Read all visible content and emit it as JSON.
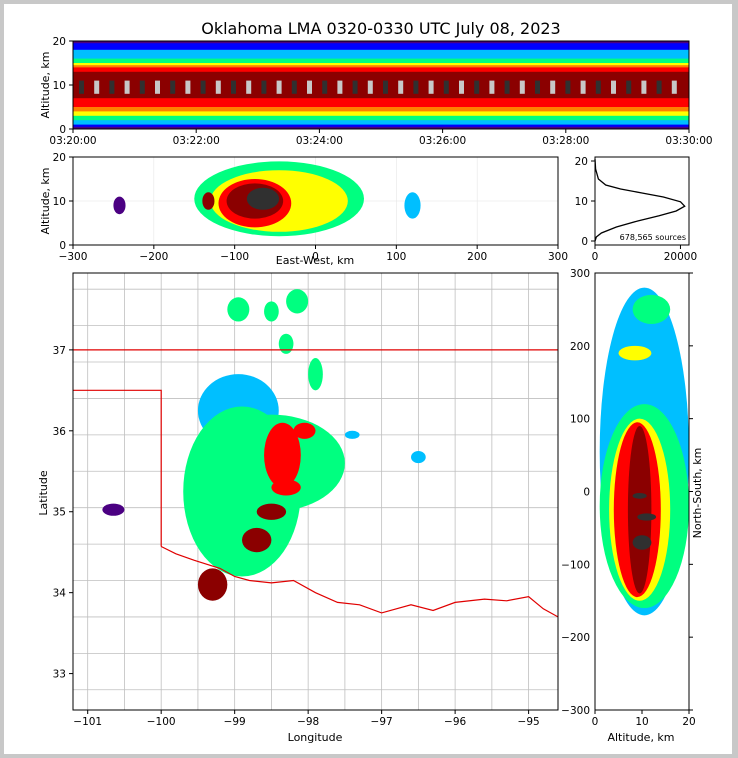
{
  "title": "Oklahoma LMA 0320-0330 UTC July 08, 2023",
  "colors": {
    "density_scale": [
      "#4b0082",
      "#0000ff",
      "#00bfff",
      "#00ff80",
      "#ffff00",
      "#ff8000",
      "#ff0000",
      "#8b0000",
      "#303030",
      "#c8c8c8"
    ],
    "state_border": "#e00000",
    "county_lines": "#bfbfbf",
    "profile_line": "#000000"
  },
  "chart_data": [
    {
      "id": "time-height",
      "type": "heatmap",
      "xlabel": "",
      "ylabel": "Altitude, km",
      "xticks": [
        "03:20:00",
        "03:22:00",
        "03:24:00",
        "03:26:00",
        "03:28:00",
        "03:30:00"
      ],
      "xlim": [
        "03:20:00",
        "03:30:00"
      ],
      "yticks": [
        0,
        10,
        20
      ],
      "ylim": [
        0,
        20
      ],
      "core_altitude_km": [
        7,
        13
      ]
    },
    {
      "id": "east-west-altitude",
      "type": "heatmap",
      "xlabel": "East-West, km",
      "ylabel": "Altitude, km",
      "xticks": [
        -300,
        -200,
        -100,
        0,
        100,
        200,
        300
      ],
      "xlim": [
        -300,
        300
      ],
      "yticks": [
        0,
        10,
        20
      ],
      "ylim": [
        0,
        20
      ],
      "cells": [
        {
          "x": [
            -150,
            60
          ],
          "y": [
            2,
            19
          ],
          "level": 3
        },
        {
          "x": [
            -130,
            40
          ],
          "y": [
            3,
            17
          ],
          "level": 4
        },
        {
          "x": [
            -120,
            -30
          ],
          "y": [
            4,
            15
          ],
          "level": 6
        },
        {
          "x": [
            -110,
            -40
          ],
          "y": [
            6,
            14
          ],
          "level": 7
        },
        {
          "x": [
            -85,
            -45
          ],
          "y": [
            8,
            13
          ],
          "level": 8
        },
        {
          "x": [
            -140,
            -125
          ],
          "y": [
            8,
            12
          ],
          "level": 7
        },
        {
          "x": [
            110,
            130
          ],
          "y": [
            6,
            12
          ],
          "level": 2
        },
        {
          "x": [
            -250,
            -235
          ],
          "y": [
            7,
            11
          ],
          "level": 0
        }
      ]
    },
    {
      "id": "altitude-histogram",
      "type": "line",
      "xticks": [
        0,
        20000
      ],
      "xlim": [
        0,
        22000
      ],
      "yticks": [
        0,
        10,
        20
      ],
      "ylim": [
        -1,
        21
      ],
      "annotation": "678,565 sources",
      "x": [
        0,
        300,
        1500,
        5000,
        10000,
        15000,
        19000,
        21000,
        20000,
        16000,
        11000,
        6000,
        2500,
        800,
        150,
        0
      ],
      "y": [
        0,
        1,
        2,
        3.5,
        5,
        6.3,
        7.5,
        8.7,
        9.8,
        11,
        12,
        13,
        14,
        15.5,
        18,
        20.5
      ]
    },
    {
      "id": "plan-view",
      "type": "heatmap",
      "xlabel": "Longitude",
      "ylabel": "Latitude",
      "xticks": [
        -101,
        -100,
        -99,
        -98,
        -97,
        -96,
        -95
      ],
      "xlim": [
        -101.2,
        -94.6
      ],
      "yticks": [
        33,
        34,
        35,
        36,
        37
      ],
      "ylim": [
        32.55,
        37.95
      ],
      "cells": [
        {
          "lon": [
            -99.5,
            -98.4
          ],
          "lat": [
            35.8,
            36.7
          ],
          "level": 2
        },
        {
          "lon": [
            -99.7,
            -98.1
          ],
          "lat": [
            34.2,
            36.3
          ],
          "level": 3
        },
        {
          "lon": [
            -99.5,
            -97.5
          ],
          "lat": [
            35.0,
            36.2
          ],
          "level": 3
        },
        {
          "lon": [
            -98.6,
            -98.1
          ],
          "lat": [
            35.3,
            36.1
          ],
          "level": 6
        },
        {
          "lon": [
            -99.5,
            -99.1
          ],
          "lat": [
            33.9,
            34.3
          ],
          "level": 7
        },
        {
          "lon": [
            -98.9,
            -98.5
          ],
          "lat": [
            34.5,
            34.8
          ],
          "level": 7
        },
        {
          "lon": [
            -98.7,
            -98.3
          ],
          "lat": [
            34.9,
            35.1
          ],
          "level": 7
        },
        {
          "lon": [
            -98.5,
            -98.1
          ],
          "lat": [
            35.2,
            35.4
          ],
          "level": 6
        },
        {
          "lon": [
            -98.2,
            -97.9
          ],
          "lat": [
            35.9,
            36.1
          ],
          "level": 6
        },
        {
          "lon": [
            -98.3,
            -98.0
          ],
          "lat": [
            37.45,
            37.75
          ],
          "level": 3
        },
        {
          "lon": [
            -99.1,
            -98.8
          ],
          "lat": [
            37.35,
            37.65
          ],
          "level": 3
        },
        {
          "lon": [
            -98.6,
            -98.4
          ],
          "lat": [
            37.35,
            37.6
          ],
          "level": 3
        },
        {
          "lon": [
            -98.4,
            -98.2
          ],
          "lat": [
            36.95,
            37.2
          ],
          "level": 3
        },
        {
          "lon": [
            -98.0,
            -97.8
          ],
          "lat": [
            36.5,
            36.9
          ],
          "level": 3
        },
        {
          "lon": [
            -96.6,
            -96.4
          ],
          "lat": [
            35.6,
            35.75
          ],
          "level": 2
        },
        {
          "lon": [
            -97.5,
            -97.3
          ],
          "lat": [
            35.9,
            36.0
          ],
          "level": 2
        },
        {
          "lon": [
            -100.8,
            -100.5
          ],
          "lat": [
            34.95,
            35.1
          ],
          "level": 0
        }
      ],
      "oklahoma_border": [
        [
          -101.2,
          37.0
        ],
        [
          -94.6,
          37.0
        ]
      ],
      "panhandle_border": [
        [
          -101.2,
          36.5
        ],
        [
          -100.0,
          36.5
        ],
        [
          -100.0,
          34.57
        ]
      ],
      "red_river_border": [
        [
          -100.0,
          34.57
        ],
        [
          -99.8,
          34.48
        ],
        [
          -99.55,
          34.4
        ],
        [
          -99.2,
          34.3
        ],
        [
          -99.0,
          34.2
        ],
        [
          -98.8,
          34.15
        ],
        [
          -98.5,
          34.12
        ],
        [
          -98.2,
          34.15
        ],
        [
          -97.9,
          34.0
        ],
        [
          -97.6,
          33.88
        ],
        [
          -97.3,
          33.85
        ],
        [
          -97.0,
          33.75
        ],
        [
          -96.6,
          33.85
        ],
        [
          -96.3,
          33.78
        ],
        [
          -96.0,
          33.88
        ],
        [
          -95.6,
          33.92
        ],
        [
          -95.3,
          33.9
        ],
        [
          -95.0,
          33.95
        ],
        [
          -94.8,
          33.8
        ],
        [
          -94.6,
          33.7
        ]
      ]
    },
    {
      "id": "altitude-north-south",
      "type": "heatmap",
      "xlabel": "Altitude, km",
      "ylabel": "North-South, km",
      "xticks": [
        0,
        10,
        20
      ],
      "xlim": [
        0,
        20
      ],
      "yticks": [
        -300,
        -200,
        -100,
        0,
        100,
        200,
        300
      ],
      "ylim": [
        -300,
        300
      ],
      "cells": [
        {
          "x": [
            1,
            20
          ],
          "y": [
            -170,
            280
          ],
          "level": 2
        },
        {
          "x": [
            1,
            20
          ],
          "y": [
            -160,
            120
          ],
          "level": 3
        },
        {
          "x": [
            3,
            16
          ],
          "y": [
            -150,
            100
          ],
          "level": 4
        },
        {
          "x": [
            4,
            14
          ],
          "y": [
            -145,
            95
          ],
          "level": 6
        },
        {
          "x": [
            7,
            12
          ],
          "y": [
            -140,
            90
          ],
          "level": 7
        },
        {
          "x": [
            8,
            12
          ],
          "y": [
            -80,
            -60
          ],
          "level": 8
        },
        {
          "x": [
            9,
            13
          ],
          "y": [
            -40,
            -30
          ],
          "level": 8
        },
        {
          "x": [
            8,
            11
          ],
          "y": [
            -10,
            -2
          ],
          "level": 8
        },
        {
          "x": [
            8,
            16
          ],
          "y": [
            230,
            270
          ],
          "level": 3
        },
        {
          "x": [
            5,
            12
          ],
          "y": [
            180,
            200
          ],
          "level": 4
        }
      ]
    }
  ]
}
